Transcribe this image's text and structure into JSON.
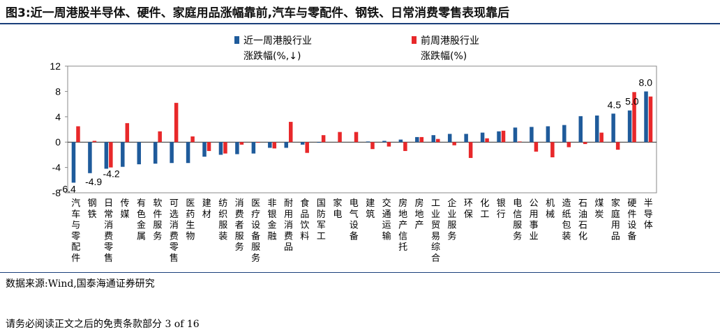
{
  "figure": {
    "title": "图3:近一周港股半导体、硬件、家庭用品涨幅靠前,汽车与零配件、钢铁、日常消费零售表现靠后",
    "source": "数据来源:Wind,国泰海通证券研究",
    "footer": "请务必阅读正文之后的免责条款部分 3 of 16"
  },
  "chart_data": {
    "type": "bar",
    "title": "",
    "xlabel": "",
    "ylabel": "",
    "ylim": [
      -8,
      12
    ],
    "yticks": [
      -8,
      -4,
      0,
      4,
      8,
      12
    ],
    "grid": false,
    "legend_position": "top",
    "categories": [
      "汽车与零配件",
      "钢铁",
      "日常消费零售",
      "传媒",
      "有色金属",
      "软件服务",
      "可选消费零售",
      "医药生物",
      "建材",
      "纺织服装",
      "消费者服务",
      "医疗设备服务",
      "非银金融",
      "耐用消费品",
      "食品饮料",
      "国防军工",
      "家电",
      "电气设备",
      "建筑",
      "交通运输",
      "房地产信托",
      "房地产",
      "工业贸易综合",
      "企业服务",
      "环保",
      "化工",
      "银行",
      "电信服务",
      "公用事业",
      "机械",
      "造纸包装",
      "石油石化",
      "煤炭",
      "家庭用品",
      "硬件设备",
      "半导体"
    ],
    "series": [
      {
        "name": "近一周港股行业涨跌幅(%,↓)",
        "color": "#1f5b9b",
        "values": [
          -6.4,
          -4.9,
          -4.2,
          -3.9,
          -3.5,
          -3.4,
          -3.3,
          -3.3,
          -2.3,
          -2.0,
          -1.9,
          -1.8,
          -0.9,
          -0.9,
          -0.4,
          -0.1,
          0.0,
          0.0,
          0.1,
          0.2,
          0.4,
          0.8,
          1.1,
          1.3,
          1.3,
          1.5,
          1.7,
          2.3,
          2.4,
          2.5,
          2.7,
          4.1,
          4.2,
          4.5,
          5.0,
          8.0
        ]
      },
      {
        "name": "前周港股行业涨跌幅(%)",
        "color": "#e8282a",
        "values": [
          2.5,
          0.2,
          -4.0,
          3.0,
          0.0,
          1.7,
          6.2,
          0.9,
          -1.4,
          -1.8,
          -0.4,
          -0.1,
          -1.0,
          3.2,
          -1.7,
          1.1,
          1.6,
          1.6,
          -1.1,
          -0.7,
          -1.4,
          0.8,
          0.5,
          -0.5,
          -2.5,
          0.6,
          1.8,
          0.1,
          -1.5,
          -2.4,
          -0.8,
          -0.3,
          1.5,
          -1.2,
          7.9,
          7.2
        ]
      }
    ],
    "data_labels": [
      {
        "index": 0,
        "series": 0,
        "text": "-6.4"
      },
      {
        "index": 1,
        "series": 0,
        "text": "-4.9"
      },
      {
        "index": 2,
        "series": 0,
        "text": "-4.2"
      },
      {
        "index": 33,
        "series": 0,
        "text": "4.5"
      },
      {
        "index": 34,
        "series": 0,
        "text": "5.0"
      },
      {
        "index": 35,
        "series": 0,
        "text": "8.0"
      }
    ]
  }
}
